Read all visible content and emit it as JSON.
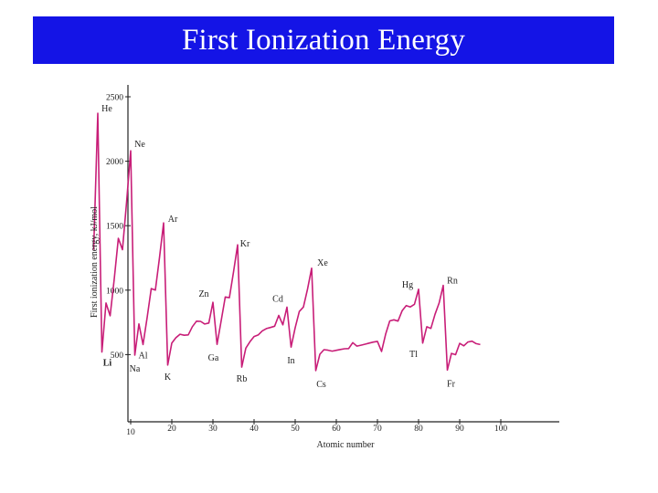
{
  "slide": {
    "title": "First Ionization Energy",
    "title_bg": "#1414e6",
    "title_color": "#ffffff"
  },
  "chart_data": {
    "type": "line",
    "title": "",
    "xlabel": "Atomic number",
    "ylabel": "First ionization energy, kJ/mol",
    "xlim": [
      0,
      100
    ],
    "ylim": [
      0,
      2500
    ],
    "x_ticks": [
      10,
      20,
      30,
      40,
      50,
      60,
      70,
      80,
      90,
      100
    ],
    "y_ticks": [
      500,
      1000,
      1500,
      2000,
      2500
    ],
    "grid": false,
    "line_color": "#c81e78",
    "series": [
      {
        "x": [
          1,
          2,
          3,
          4,
          5,
          6,
          7,
          8,
          9,
          10,
          11,
          12,
          13,
          14,
          15,
          16,
          17,
          18,
          19,
          20,
          21,
          22,
          23,
          24,
          25,
          26,
          27,
          28,
          29,
          30,
          31,
          32,
          33,
          34,
          35,
          36,
          37,
          38,
          39,
          40,
          41,
          42,
          43,
          44,
          45,
          46,
          47,
          48,
          49,
          50,
          51,
          52,
          53,
          54,
          55,
          56,
          57,
          58,
          59,
          60,
          61,
          62,
          63,
          64,
          65,
          66,
          67,
          68,
          69,
          70,
          71,
          72,
          73,
          74,
          75,
          76,
          77,
          78,
          79,
          80,
          81,
          82,
          83,
          84,
          85,
          86,
          87,
          88,
          89,
          90,
          91,
          92,
          93,
          94,
          95
        ],
        "y": [
          1312,
          2372,
          520,
          900,
          801,
          1086,
          1402,
          1314,
          1681,
          2081,
          496,
          738,
          578,
          787,
          1012,
          1000,
          1251,
          1521,
          419,
          590,
          631,
          658,
          650,
          653,
          717,
          759,
          758,
          737,
          745,
          906,
          579,
          762,
          947,
          941,
          1140,
          1351,
          403,
          550,
          600,
          640,
          652,
          684,
          702,
          710,
          720,
          804,
          731,
          868,
          558,
          709,
          834,
          869,
          1008,
          1170,
          376,
          503,
          538,
          534,
          527,
          533,
          540,
          545,
          547,
          593,
          566,
          573,
          581,
          589,
          597,
          603,
          524,
          659,
          761,
          770,
          760,
          840,
          880,
          870,
          890,
          1007,
          589,
          716,
          703,
          812,
          900,
          1037,
          380,
          509,
          499,
          587,
          568,
          598,
          604,
          585,
          578
        ]
      }
    ],
    "annotations": [
      {
        "label": "He",
        "x": 2,
        "y": 2372
      },
      {
        "label": "Ne",
        "x": 10,
        "y": 2081
      },
      {
        "label": "Ar",
        "x": 18,
        "y": 1521
      },
      {
        "label": "Kr",
        "x": 36,
        "y": 1351
      },
      {
        "label": "Xe",
        "x": 54,
        "y": 1170
      },
      {
        "label": "Rn",
        "x": 86,
        "y": 1037
      },
      {
        "label": "Hg",
        "x": 80,
        "y": 1007
      },
      {
        "label": "Cd",
        "x": 48,
        "y": 868
      },
      {
        "label": "Zn",
        "x": 30,
        "y": 906
      },
      {
        "label": "Li",
        "x": 3,
        "y": 520
      },
      {
        "label": "Na",
        "x": 11,
        "y": 496
      },
      {
        "label": "Al",
        "x": 13,
        "y": 578
      },
      {
        "label": "K",
        "x": 19,
        "y": 419
      },
      {
        "label": "Ga",
        "x": 31,
        "y": 579
      },
      {
        "label": "Rb",
        "x": 37,
        "y": 403
      },
      {
        "label": "In",
        "x": 49,
        "y": 558
      },
      {
        "label": "Cs",
        "x": 55,
        "y": 376
      },
      {
        "label": "Tl",
        "x": 81,
        "y": 589
      },
      {
        "label": "Fr",
        "x": 87,
        "y": 380
      }
    ]
  }
}
